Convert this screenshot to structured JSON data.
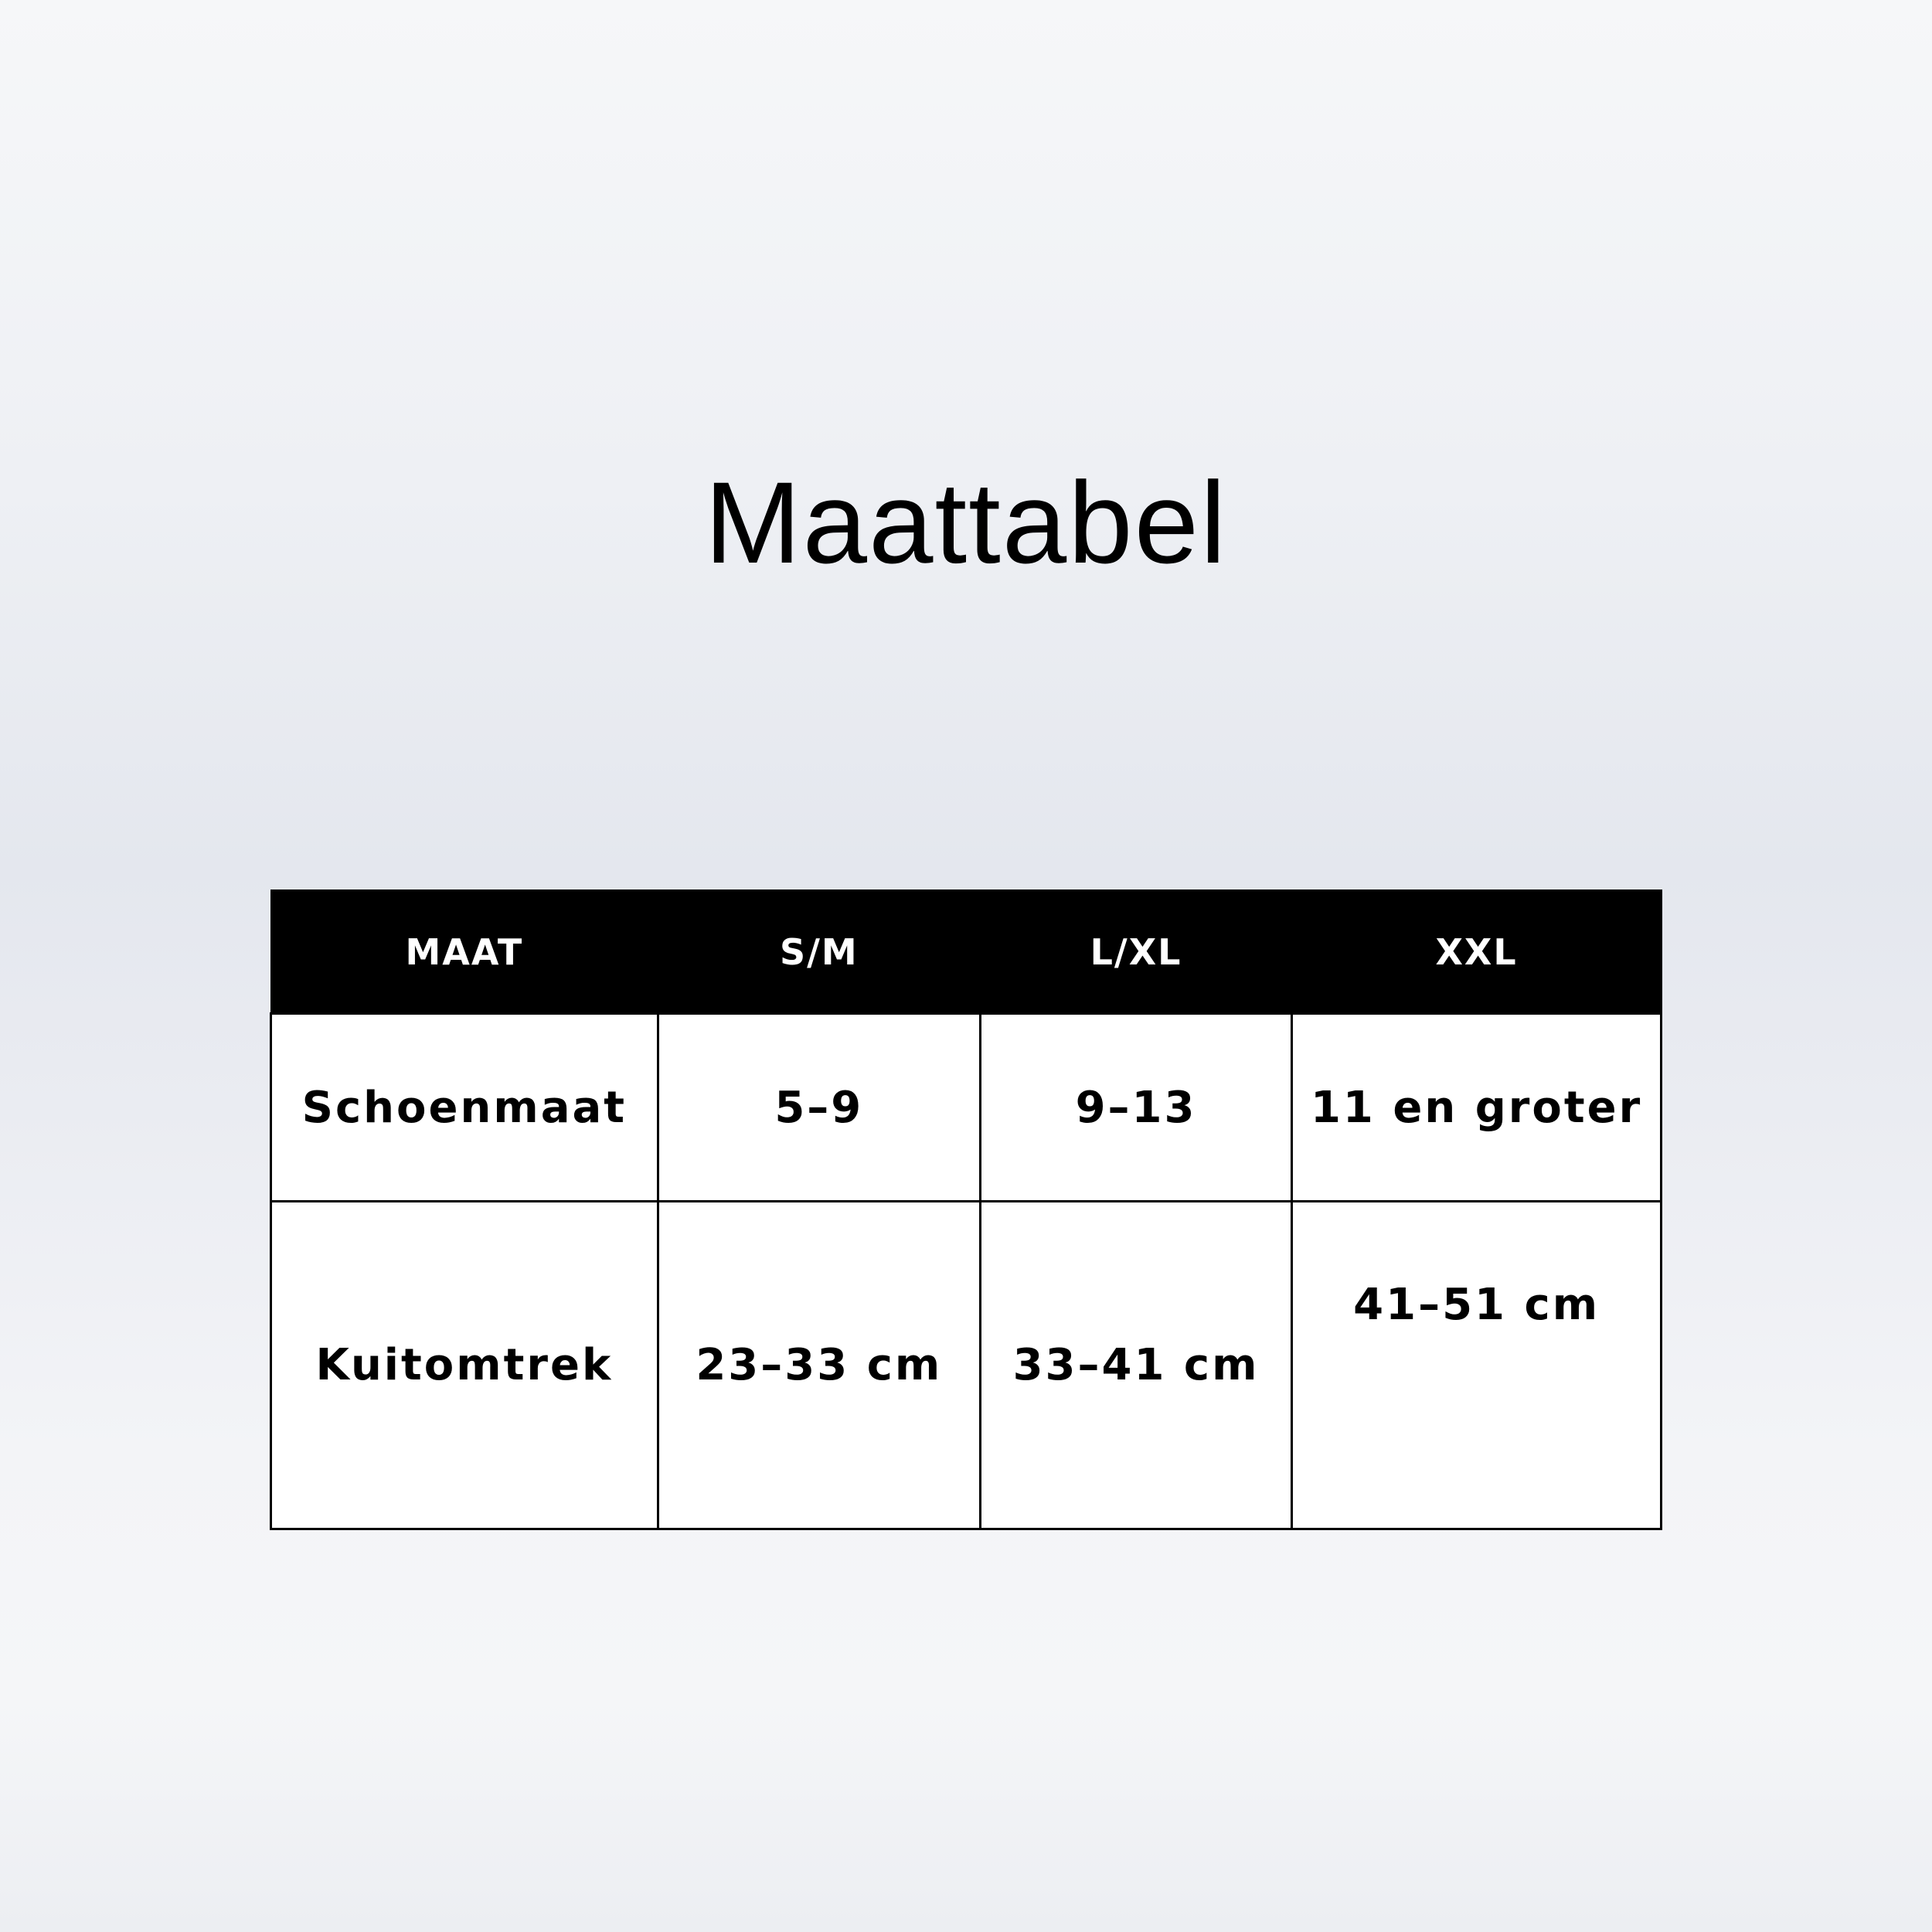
{
  "title": "Maattabel",
  "table": {
    "headers": [
      "MAAT",
      "S/M",
      "L/XL",
      "XXL"
    ],
    "rows": [
      [
        "Schoenmaat",
        "5–9",
        "9–13",
        "11 en groter"
      ],
      [
        "Kuitomtrek",
        "23–33 cm",
        "33–41 cm",
        "41–51 cm"
      ]
    ]
  }
}
